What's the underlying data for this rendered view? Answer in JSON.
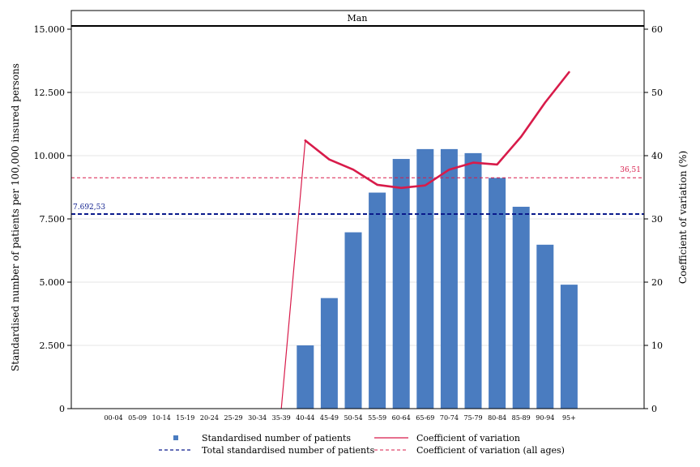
{
  "chart_data": {
    "type": "bar",
    "panel_title": "Man",
    "categories": [
      "00-04",
      "05-09",
      "10-14",
      "15-19",
      "20-24",
      "25-29",
      "30-34",
      "35-39",
      "40-44",
      "45-49",
      "50-54",
      "55-59",
      "60-64",
      "65-69",
      "70-74",
      "75-79",
      "80-84",
      "85-89",
      "90-94",
      "95+"
    ],
    "series": [
      {
        "name": "Standardised number of patients",
        "type": "bar",
        "axis": "left",
        "color": "#4a7cc0",
        "values": [
          0,
          0,
          0,
          0,
          0,
          0,
          0,
          0,
          2500,
          4370,
          6970,
          8540,
          9870,
          10260,
          10260,
          10100,
          9120,
          7980,
          6480,
          4900
        ]
      },
      {
        "name": "Coefficient of variation",
        "type": "line",
        "axis": "right",
        "color": "#d81b4a",
        "values": [
          0,
          0,
          0,
          0,
          0,
          0,
          0,
          0,
          42.4,
          39.4,
          37.8,
          35.4,
          34.9,
          35.3,
          37.8,
          38.9,
          38.6,
          43.0,
          48.4,
          53.2
        ]
      }
    ],
    "reference_lines": [
      {
        "name": "Total standardised number of patients",
        "axis": "left",
        "value": 7692.53,
        "label": "7.692,53",
        "color": "#0a1a8c"
      },
      {
        "name": "Coefficient of variation (all ages)",
        "axis": "right",
        "value": 36.51,
        "label": "36,51",
        "color": "#d81b4a"
      }
    ],
    "ylabel": "Standardised number of patients per 100,000 insured persons",
    "y2label": "Coefficient of variation (%)",
    "ylim": [
      0,
      15000
    ],
    "yticks": [
      {
        "value": 0,
        "label": "0"
      },
      {
        "value": 2500,
        "label": "2.500"
      },
      {
        "value": 5000,
        "label": "5.000"
      },
      {
        "value": 7500,
        "label": "7.500"
      },
      {
        "value": 10000,
        "label": "10.000"
      },
      {
        "value": 12500,
        "label": "12.500"
      },
      {
        "value": 15000,
        "label": "15.000"
      }
    ],
    "y2lim": [
      0,
      60
    ],
    "y2ticks": [
      {
        "value": 0,
        "label": "0"
      },
      {
        "value": 10,
        "label": "10"
      },
      {
        "value": 20,
        "label": "20"
      },
      {
        "value": 30,
        "label": "30"
      },
      {
        "value": 40,
        "label": "40"
      },
      {
        "value": 50,
        "label": "50"
      },
      {
        "value": 60,
        "label": "60"
      }
    ],
    "grid": true,
    "legend_position": "bottom",
    "legend": [
      {
        "label": "Standardised number of patients",
        "symbol": "square",
        "color": "#4a7cc0"
      },
      {
        "label": "Coefficient of variation",
        "symbol": "line",
        "color": "#d81b4a"
      },
      {
        "label": "Total standardised number of patients",
        "symbol": "dashed-line",
        "color": "#0a1a8c"
      },
      {
        "label": "Coefficient of variation (all ages)",
        "symbol": "dashed-line",
        "color": "#d81b4a"
      }
    ]
  }
}
